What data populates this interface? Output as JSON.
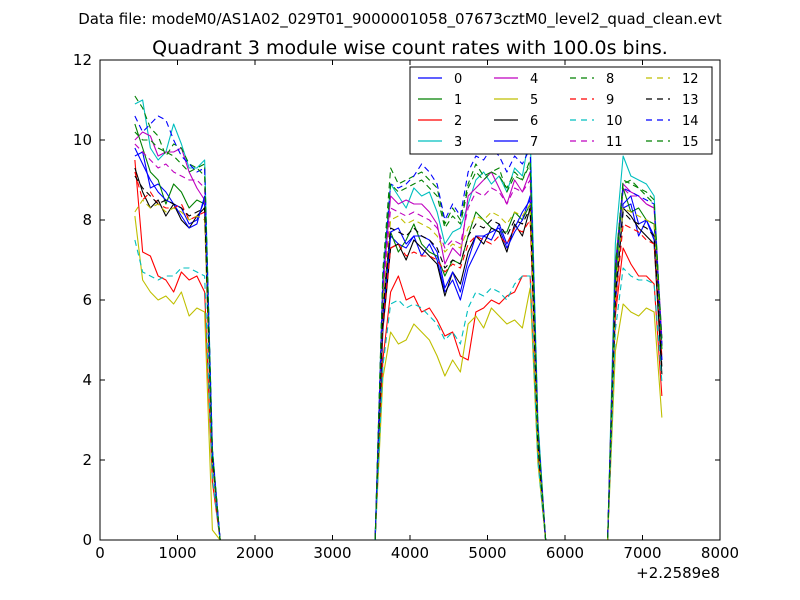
{
  "suptitle": "Data file: modeM0/AS1A02_029T01_9000001058_07673cztM0_level2_quad_clean.evt",
  "chart_data": {
    "type": "line",
    "title": "Quadrant 3 module wise count rates with 100.0s bins.",
    "xlabel": "",
    "ylabel": "",
    "xlim": [
      0,
      8000
    ],
    "ylim": [
      0,
      12
    ],
    "x_ticks": [
      0,
      1000,
      2000,
      3000,
      4000,
      5000,
      6000,
      7000,
      8000
    ],
    "y_ticks": [
      0,
      2,
      4,
      6,
      8,
      10,
      12
    ],
    "x_offset_label": "+2.2589e8",
    "grid": false,
    "legend_position": "top-right",
    "legend_columns": 4,
    "x": [
      450,
      550,
      650,
      750,
      850,
      950,
      1050,
      1150,
      1250,
      1350,
      1450,
      1550,
      1650,
      1750,
      1850,
      1950,
      2050,
      2150,
      2250,
      2350,
      2450,
      2550,
      2650,
      2750,
      2850,
      2950,
      3050,
      3150,
      3250,
      3350,
      3450,
      3550,
      3650,
      3750,
      3850,
      3950,
      4050,
      4150,
      4250,
      4350,
      4450,
      4550,
      4650,
      4750,
      4850,
      4950,
      5050,
      5150,
      5250,
      5350,
      5450,
      5550,
      5650,
      5750,
      5850,
      5950,
      6050,
      6150,
      6250,
      6350,
      6450,
      6550,
      6650,
      6750,
      6850,
      6950,
      7050,
      7150,
      7250
    ],
    "envelope": [
      1.0,
      1.0,
      1.0,
      1.0,
      1.0,
      1.0,
      1.0,
      1.0,
      1.0,
      1.0,
      0.25,
      0,
      0,
      0,
      0,
      0,
      0,
      0,
      0,
      0,
      0,
      0,
      0,
      0,
      0,
      0,
      0,
      0,
      0,
      0,
      0,
      0,
      0.75,
      1.0,
      1.0,
      1.0,
      1.0,
      1.0,
      1.0,
      1.0,
      1.0,
      1.0,
      1.0,
      1.0,
      1.0,
      1.0,
      1.0,
      1.0,
      1.0,
      1.0,
      1.0,
      1.0,
      0.3,
      0,
      0,
      0,
      0,
      0,
      0,
      0,
      0,
      0,
      0.75,
      1.0,
      1.0,
      1.0,
      1.0,
      1.0,
      0.9
    ],
    "series": [
      {
        "name": "0",
        "color": "#0000ff",
        "dash": "solid",
        "base": [
          9.6,
          9.7,
          8.8,
          8.9,
          8.7,
          8.4,
          8.3,
          7.9,
          8.0,
          8.5,
          8.3,
          0,
          0,
          0,
          0,
          0,
          0,
          0,
          0,
          0,
          0,
          0,
          0,
          0,
          0,
          0,
          0,
          0,
          0,
          0,
          0,
          0,
          7.3,
          7.6,
          7.4,
          7.3,
          7.6,
          7.1,
          7.4,
          7.0,
          6.2,
          6.5,
          6.0,
          6.8,
          7.2,
          7.6,
          7.5,
          7.9,
          7.4,
          7.8,
          8.2,
          8.5,
          8.4,
          0,
          0,
          0,
          0,
          0,
          0,
          0,
          0,
          0,
          8.1,
          8.3,
          8.4,
          7.6,
          8.0,
          7.5,
          5.0
        ]
      },
      {
        "name": "1",
        "color": "#008000",
        "dash": "solid",
        "base": [
          10.4,
          9.8,
          9.2,
          9.0,
          8.4,
          8.9,
          8.7,
          8.3,
          8.5,
          8.4,
          8.2,
          0,
          0,
          0,
          0,
          0,
          0,
          0,
          0,
          0,
          0,
          0,
          0,
          0,
          0,
          0,
          0,
          0,
          0,
          0,
          0,
          0,
          8.0,
          7.7,
          7.2,
          7.5,
          7.9,
          7.4,
          7.2,
          7.1,
          6.6,
          7.0,
          6.9,
          7.6,
          8.2,
          8.0,
          7.8,
          7.7,
          7.7,
          8.2,
          8.0,
          8.4,
          8.3,
          0,
          0,
          0,
          0,
          0,
          0,
          0,
          0,
          0,
          8.6,
          8.8,
          8.2,
          8.3,
          8.0,
          7.9,
          5.4
        ]
      },
      {
        "name": "2",
        "color": "#ff0000",
        "dash": "solid",
        "base": [
          9.5,
          7.2,
          7.1,
          6.6,
          6.5,
          6.2,
          6.7,
          6.5,
          6.6,
          6.2,
          5.8,
          0,
          0,
          0,
          0,
          0,
          0,
          0,
          0,
          0,
          0,
          0,
          0,
          0,
          0,
          0,
          0,
          0,
          0,
          0,
          0,
          0,
          6.0,
          6.2,
          6.6,
          6.0,
          6.1,
          5.7,
          5.8,
          5.5,
          5.1,
          5.2,
          4.6,
          4.5,
          5.7,
          5.8,
          6.0,
          5.9,
          6.1,
          6.2,
          6.6,
          6.6,
          6.8,
          0,
          0,
          0,
          0,
          0,
          0,
          0,
          0,
          0,
          7.5,
          7.3,
          6.9,
          6.6,
          6.6,
          6.4,
          4.0
        ]
      },
      {
        "name": "3",
        "color": "#00bfbf",
        "dash": "solid",
        "base": [
          10.9,
          11.0,
          9.8,
          9.5,
          9.7,
          10.4,
          9.9,
          9.3,
          9.3,
          9.5,
          9.2,
          0,
          0,
          0,
          0,
          0,
          0,
          0,
          0,
          0,
          0,
          0,
          0,
          0,
          0,
          0,
          0,
          0,
          0,
          0,
          0,
          0,
          8.8,
          8.9,
          8.6,
          8.3,
          8.8,
          8.6,
          8.7,
          8.2,
          7.4,
          7.7,
          7.8,
          8.4,
          9.0,
          9.2,
          8.9,
          9.1,
          8.7,
          9.3,
          9.1,
          10.2,
          10.0,
          0,
          0,
          0,
          0,
          0,
          0,
          0,
          0,
          0,
          9.9,
          9.6,
          9.1,
          9.0,
          8.9,
          8.6,
          5.4
        ]
      },
      {
        "name": "4",
        "color": "#bf00bf",
        "dash": "solid",
        "base": [
          10.0,
          10.2,
          10.1,
          9.6,
          9.7,
          9.7,
          9.8,
          9.2,
          8.8,
          8.5,
          8.4,
          0,
          0,
          0,
          0,
          0,
          0,
          0,
          0,
          0,
          0,
          0,
          0,
          0,
          0,
          0,
          0,
          0,
          0,
          0,
          0,
          0,
          8.4,
          8.6,
          8.4,
          8.5,
          8.4,
          8.4,
          8.2,
          7.9,
          6.9,
          7.3,
          7.1,
          8.6,
          8.8,
          9.0,
          9.2,
          8.8,
          8.4,
          9.0,
          8.7,
          9.2,
          9.0,
          0,
          0,
          0,
          0,
          0,
          0,
          0,
          0,
          0,
          9.2,
          8.9,
          8.7,
          8.6,
          8.4,
          8.3,
          5.6
        ]
      },
      {
        "name": "5",
        "color": "#bfbf00",
        "dash": "solid",
        "base": [
          8.1,
          6.5,
          6.2,
          6.0,
          6.1,
          5.9,
          6.2,
          5.6,
          5.8,
          5.7,
          1.0,
          0,
          0,
          0,
          0,
          0,
          0,
          0,
          0,
          0,
          0,
          0,
          0,
          0,
          0,
          0,
          0,
          0,
          0,
          0,
          0,
          0,
          5.4,
          5.2,
          4.9,
          5.0,
          5.4,
          5.2,
          5.0,
          4.6,
          4.1,
          4.5,
          4.2,
          5.4,
          5.6,
          5.3,
          5.8,
          5.6,
          5.4,
          5.5,
          5.3,
          6.3,
          6.4,
          0,
          0,
          0,
          0,
          0,
          0,
          0,
          0,
          0,
          6.3,
          5.9,
          5.7,
          5.6,
          5.8,
          5.7,
          3.4
        ]
      },
      {
        "name": "6",
        "color": "#000000",
        "dash": "solid",
        "base": [
          9.3,
          8.7,
          8.3,
          8.5,
          8.1,
          8.4,
          8.0,
          7.8,
          8.1,
          8.3,
          8.0,
          0,
          0,
          0,
          0,
          0,
          0,
          0,
          0,
          0,
          0,
          0,
          0,
          0,
          0,
          0,
          0,
          0,
          0,
          0,
          0,
          0,
          7.0,
          7.3,
          7.4,
          7.0,
          7.5,
          7.3,
          7.1,
          6.9,
          6.1,
          6.7,
          6.4,
          7.2,
          7.6,
          7.4,
          7.8,
          7.7,
          7.2,
          7.9,
          7.6,
          8.3,
          8.0,
          0,
          0,
          0,
          0,
          0,
          0,
          0,
          0,
          0,
          7.9,
          8.3,
          8.1,
          7.8,
          7.6,
          7.4,
          4.6
        ]
      },
      {
        "name": "7",
        "color": "#0000ff",
        "dash": "solid",
        "base": [
          9.8,
          9.4,
          9.0,
          8.7,
          8.5,
          8.4,
          8.1,
          7.8,
          7.9,
          8.6,
          8.4,
          0,
          0,
          0,
          0,
          0,
          0,
          0,
          0,
          0,
          0,
          0,
          0,
          0,
          0,
          0,
          0,
          0,
          0,
          0,
          0,
          0,
          7.4,
          7.7,
          7.8,
          7.4,
          7.6,
          7.6,
          7.5,
          7.2,
          6.3,
          6.7,
          6.2,
          7.0,
          7.6,
          7.6,
          7.7,
          7.8,
          7.3,
          7.7,
          8.0,
          8.6,
          8.4,
          0,
          0,
          0,
          0,
          0,
          0,
          0,
          0,
          0,
          7.9,
          8.4,
          8.6,
          7.9,
          8.0,
          7.6,
          5.0
        ]
      },
      {
        "name": "8",
        "color": "#008000",
        "dash": "dashed",
        "base": [
          11.1,
          10.8,
          10.3,
          10.1,
          9.6,
          9.9,
          9.8,
          9.4,
          9.3,
          9.4,
          9.0,
          0,
          0,
          0,
          0,
          0,
          0,
          0,
          0,
          0,
          0,
          0,
          0,
          0,
          0,
          0,
          0,
          0,
          0,
          0,
          0,
          0,
          9.0,
          9.3,
          8.9,
          9.0,
          9.1,
          9.2,
          9.0,
          8.8,
          7.9,
          8.3,
          8.0,
          8.9,
          9.4,
          9.1,
          9.2,
          9.3,
          8.7,
          9.1,
          9.0,
          9.5,
          9.1,
          0,
          0,
          0,
          0,
          0,
          0,
          0,
          0,
          0,
          9.0,
          8.9,
          9.0,
          8.8,
          8.6,
          8.4,
          5.6
        ]
      },
      {
        "name": "9",
        "color": "#ff0000",
        "dash": "dashed",
        "base": [
          9.2,
          8.5,
          8.7,
          8.4,
          8.3,
          8.3,
          8.4,
          8.0,
          8.1,
          8.2,
          7.9,
          0,
          0,
          0,
          0,
          0,
          0,
          0,
          0,
          0,
          0,
          0,
          0,
          0,
          0,
          0,
          0,
          0,
          0,
          0,
          0,
          0,
          7.2,
          7.3,
          7.4,
          7.1,
          7.2,
          7.1,
          7.1,
          7.0,
          6.7,
          6.9,
          6.8,
          7.4,
          7.6,
          7.5,
          7.4,
          7.6,
          7.4,
          7.8,
          7.7,
          8.0,
          7.9,
          0,
          0,
          0,
          0,
          0,
          0,
          0,
          0,
          0,
          7.8,
          7.9,
          7.8,
          7.7,
          7.5,
          7.4,
          5.1
        ]
      },
      {
        "name": "10",
        "color": "#00bfbf",
        "dash": "dashed",
        "base": [
          7.5,
          6.7,
          6.6,
          6.5,
          6.6,
          6.6,
          6.8,
          6.8,
          6.7,
          6.6,
          6.2,
          0,
          0,
          0,
          0,
          0,
          0,
          0,
          0,
          0,
          0,
          0,
          0,
          0,
          0,
          0,
          0,
          0,
          0,
          0,
          0,
          0,
          5.8,
          5.9,
          6.0,
          5.8,
          5.9,
          5.8,
          5.6,
          5.4,
          5.0,
          5.2,
          4.9,
          5.8,
          6.2,
          6.1,
          6.3,
          6.2,
          6.0,
          6.4,
          6.6,
          6.6,
          6.6,
          0,
          0,
          0,
          0,
          0,
          0,
          0,
          0,
          0,
          7.0,
          6.8,
          6.6,
          6.5,
          6.5,
          6.4,
          4.4
        ]
      },
      {
        "name": "11",
        "color": "#bf00bf",
        "dash": "dashed",
        "base": [
          9.9,
          9.7,
          9.5,
          9.3,
          9.4,
          9.2,
          9.1,
          9.0,
          9.0,
          8.8,
          8.5,
          0,
          0,
          0,
          0,
          0,
          0,
          0,
          0,
          0,
          0,
          0,
          0,
          0,
          0,
          0,
          0,
          0,
          0,
          0,
          0,
          0,
          8.1,
          8.3,
          8.2,
          8.1,
          8.2,
          8.1,
          8.0,
          7.8,
          7.3,
          7.5,
          7.4,
          8.3,
          8.7,
          8.6,
          8.8,
          8.7,
          8.4,
          8.8,
          8.7,
          9.0,
          8.9,
          0,
          0,
          0,
          0,
          0,
          0,
          0,
          0,
          0,
          8.9,
          8.8,
          8.6,
          8.6,
          8.4,
          8.3,
          5.4
        ]
      },
      {
        "name": "12",
        "color": "#bfbf00",
        "dash": "dashed",
        "base": [
          8.2,
          8.5,
          8.3,
          8.4,
          8.2,
          8.3,
          8.2,
          8.0,
          8.1,
          8.0,
          7.8,
          0,
          0,
          0,
          0,
          0,
          0,
          0,
          0,
          0,
          0,
          0,
          0,
          0,
          0,
          0,
          0,
          0,
          0,
          0,
          0,
          0,
          7.9,
          8.0,
          8.1,
          7.9,
          8.0,
          7.9,
          7.8,
          7.6,
          7.2,
          7.4,
          7.3,
          7.8,
          8.1,
          8.0,
          8.2,
          8.1,
          7.9,
          8.2,
          8.1,
          8.4,
          8.3,
          0,
          0,
          0,
          0,
          0,
          0,
          0,
          0,
          0,
          8.2,
          8.3,
          8.2,
          8.1,
          8.0,
          7.9,
          5.2
        ]
      },
      {
        "name": "13",
        "color": "#000000",
        "dash": "dashed",
        "base": [
          9.1,
          8.8,
          8.6,
          8.4,
          8.5,
          8.4,
          8.3,
          8.1,
          8.2,
          8.3,
          8.0,
          0,
          0,
          0,
          0,
          0,
          0,
          0,
          0,
          0,
          0,
          0,
          0,
          0,
          0,
          0,
          0,
          0,
          0,
          0,
          0,
          0,
          7.6,
          7.8,
          7.7,
          7.6,
          7.8,
          7.6,
          7.5,
          7.3,
          6.8,
          7.0,
          6.9,
          7.6,
          7.9,
          7.8,
          8.0,
          7.9,
          7.6,
          8.0,
          7.9,
          8.3,
          8.1,
          0,
          0,
          0,
          0,
          0,
          0,
          0,
          0,
          0,
          8.2,
          8.2,
          8.0,
          7.9,
          7.8,
          7.6,
          4.8
        ]
      },
      {
        "name": "14",
        "color": "#0000ff",
        "dash": "dashed",
        "base": [
          10.6,
          10.2,
          10.4,
          10.6,
          10.5,
          10.0,
          9.6,
          9.4,
          9.2,
          9.3,
          9.0,
          0,
          0,
          0,
          0,
          0,
          0,
          0,
          0,
          0,
          0,
          0,
          0,
          0,
          0,
          0,
          0,
          0,
          0,
          0,
          0,
          0,
          8.7,
          8.9,
          8.8,
          8.9,
          9.1,
          9.4,
          9.2,
          8.9,
          8.0,
          8.4,
          8.1,
          9.2,
          9.6,
          9.5,
          9.8,
          9.6,
          9.2,
          9.6,
          9.4,
          9.8,
          9.5,
          0,
          0,
          0,
          0,
          0,
          0,
          0,
          0,
          0,
          9.0,
          8.8,
          8.7,
          8.6,
          8.5,
          8.4,
          5.4
        ]
      },
      {
        "name": "15",
        "color": "#008000",
        "dash": "dashed",
        "base": [
          10.2,
          10.0,
          10.0,
          9.8,
          9.7,
          9.6,
          9.4,
          9.2,
          9.3,
          9.1,
          8.8,
          0,
          0,
          0,
          0,
          0,
          0,
          0,
          0,
          0,
          0,
          0,
          0,
          0,
          0,
          0,
          0,
          0,
          0,
          0,
          0,
          0,
          8.8,
          8.9,
          8.7,
          8.8,
          8.9,
          9.0,
          8.8,
          8.6,
          7.8,
          8.1,
          7.9,
          8.8,
          9.2,
          9.0,
          9.2,
          9.1,
          8.8,
          9.2,
          9.0,
          9.4,
          9.2,
          0,
          0,
          0,
          0,
          0,
          0,
          0,
          0,
          0,
          9.1,
          9.0,
          8.9,
          8.8,
          8.7,
          8.5,
          5.3
        ]
      }
    ]
  }
}
